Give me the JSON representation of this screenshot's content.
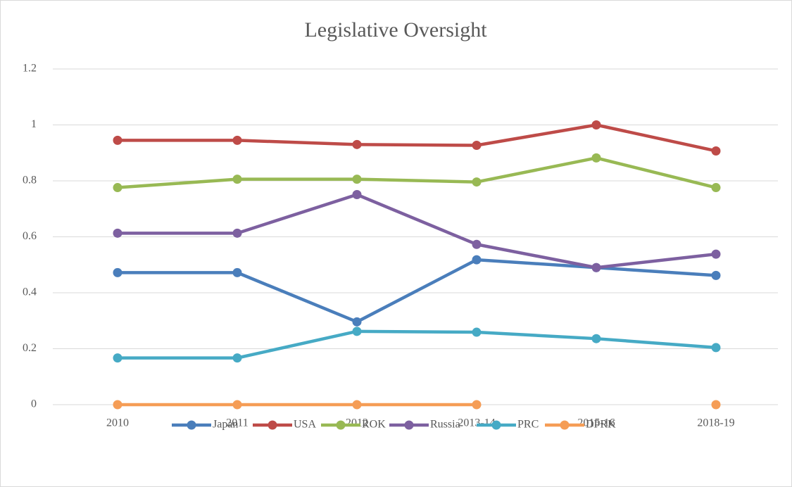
{
  "chart_data": {
    "type": "line",
    "title": "Legislative Oversight",
    "categories": [
      "2010",
      "2011",
      "2012",
      "2013-14",
      "2015-16",
      "2018-19"
    ],
    "series": [
      {
        "name": "Japan",
        "color": "#4a7ebb",
        "values": [
          0.472,
          0.472,
          0.296,
          0.518,
          0.49,
          0.462
        ]
      },
      {
        "name": "USA",
        "color": "#be4b48",
        "values": [
          0.945,
          0.945,
          0.93,
          0.927,
          1.0,
          0.907
        ]
      },
      {
        "name": "ROK",
        "color": "#98b954",
        "values": [
          0.776,
          0.806,
          0.806,
          0.796,
          0.882,
          0.776
        ]
      },
      {
        "name": "Russia",
        "color": "#7d60a0",
        "values": [
          0.613,
          0.613,
          0.751,
          0.573,
          0.49,
          0.538
        ]
      },
      {
        "name": "PRC",
        "color": "#46aac5",
        "values": [
          0.167,
          0.167,
          0.262,
          0.259,
          0.236,
          0.204
        ]
      },
      {
        "name": "DPRK",
        "color": "#f59d56",
        "values": [
          0,
          0,
          0,
          0,
          null,
          0
        ]
      }
    ],
    "ylim": [
      0,
      1.2
    ],
    "yticks": [
      0,
      0.2,
      0.4,
      0.6,
      0.8,
      1,
      1.2
    ],
    "grid": true,
    "legend": "bottom"
  }
}
